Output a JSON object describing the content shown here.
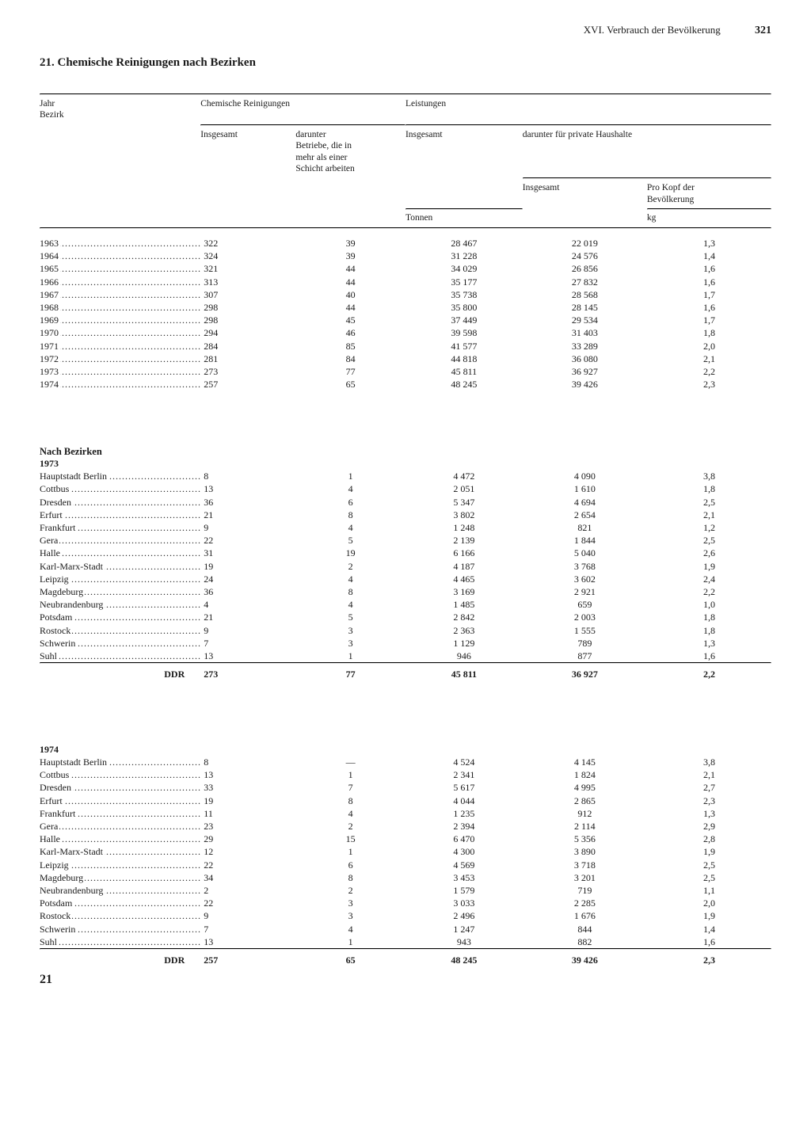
{
  "page": {
    "header_section": "XVI. Verbrauch der Bevölkerung",
    "page_number": "321",
    "title": "21. Chemische Reinigungen nach Bezirken",
    "footer_number": "21"
  },
  "table": {
    "head": {
      "label_line1": "Jahr",
      "label_line2": "Bezirk",
      "group_left": "Chemische Reinigungen",
      "group_right": "Leistungen",
      "col_a": "Insgesamt",
      "col_b_l1": "darunter",
      "col_b_l2": "Betriebe, die in",
      "col_b_l3": "mehr als einer",
      "col_b_l4": "Schicht arbeiten",
      "col_c": "Insgesamt",
      "group_de": "darunter für private Haushalte",
      "col_d": "Insgesamt",
      "col_e_l1": "Pro Kopf der",
      "col_e_l2": "Bevölkerung",
      "unit_c": "Tonnen",
      "unit_e": "kg"
    },
    "year_rows": [
      {
        "label": "1963",
        "a": "322",
        "b": "39",
        "c": "28 467",
        "d": "22 019",
        "e": "1,3"
      },
      {
        "label": "1964",
        "a": "324",
        "b": "39",
        "c": "31 228",
        "d": "24 576",
        "e": "1,4"
      },
      {
        "label": "1965",
        "a": "321",
        "b": "44",
        "c": "34 029",
        "d": "26 856",
        "e": "1,6"
      },
      {
        "label": "1966",
        "a": "313",
        "b": "44",
        "c": "35 177",
        "d": "27 832",
        "e": "1,6"
      },
      {
        "label": "1967",
        "a": "307",
        "b": "40",
        "c": "35 738",
        "d": "28 568",
        "e": "1,7"
      },
      {
        "label": "1968",
        "a": "298",
        "b": "44",
        "c": "35 800",
        "d": "28 145",
        "e": "1,6"
      },
      {
        "label": "1969",
        "a": "298",
        "b": "45",
        "c": "37 449",
        "d": "29 534",
        "e": "1,7"
      },
      {
        "label": "1970",
        "a": "294",
        "b": "46",
        "c": "39 598",
        "d": "31 403",
        "e": "1,8"
      },
      {
        "label": "1971",
        "a": "284",
        "b": "85",
        "c": "41 577",
        "d": "33 289",
        "e": "2,0"
      },
      {
        "label": "1972",
        "a": "281",
        "b": "84",
        "c": "44 818",
        "d": "36 080",
        "e": "2,1"
      },
      {
        "label": "1973",
        "a": "273",
        "b": "77",
        "c": "45 811",
        "d": "36 927",
        "e": "2,2"
      },
      {
        "label": "1974",
        "a": "257",
        "b": "65",
        "c": "48 245",
        "d": "39 426",
        "e": "2,3"
      }
    ],
    "section_heading": "Nach Bezirken",
    "y1973": {
      "year": "1973",
      "rows": [
        {
          "label": "Hauptstadt Berlin",
          "a": "8",
          "b": "1",
          "c": "4 472",
          "d": "4 090",
          "e": "3,8"
        },
        {
          "label": "Cottbus",
          "a": "13",
          "b": "4",
          "c": "2 051",
          "d": "1 610",
          "e": "1,8"
        },
        {
          "label": "Dresden",
          "a": "36",
          "b": "6",
          "c": "5 347",
          "d": "4 694",
          "e": "2,5"
        },
        {
          "label": "Erfurt",
          "a": "21",
          "b": "8",
          "c": "3 802",
          "d": "2 654",
          "e": "2,1"
        },
        {
          "label": "Frankfurt",
          "a": "9",
          "b": "4",
          "c": "1 248",
          "d": "821",
          "e": "1,2"
        },
        {
          "label": "Gera",
          "a": "22",
          "b": "5",
          "c": "2 139",
          "d": "1 844",
          "e": "2,5"
        },
        {
          "label": "Halle",
          "a": "31",
          "b": "19",
          "c": "6 166",
          "d": "5 040",
          "e": "2,6"
        },
        {
          "label": "Karl-Marx-Stadt",
          "a": "19",
          "b": "2",
          "c": "4 187",
          "d": "3 768",
          "e": "1,9"
        },
        {
          "label": "Leipzig",
          "a": "24",
          "b": "4",
          "c": "4 465",
          "d": "3 602",
          "e": "2,4"
        },
        {
          "label": "Magdeburg",
          "a": "36",
          "b": "8",
          "c": "3 169",
          "d": "2 921",
          "e": "2,2"
        },
        {
          "label": "Neubrandenburg",
          "a": "4",
          "b": "4",
          "c": "1 485",
          "d": "659",
          "e": "1,0"
        },
        {
          "label": "Potsdam",
          "a": "21",
          "b": "5",
          "c": "2 842",
          "d": "2 003",
          "e": "1,8"
        },
        {
          "label": "Rostock",
          "a": "9",
          "b": "3",
          "c": "2 363",
          "d": "1 555",
          "e": "1,8"
        },
        {
          "label": "Schwerin",
          "a": "7",
          "b": "3",
          "c": "1 129",
          "d": "789",
          "e": "1,3"
        },
        {
          "label": "Suhl",
          "a": "13",
          "b": "1",
          "c": "946",
          "d": "877",
          "e": "1,6"
        }
      ],
      "total": {
        "label": "DDR",
        "a": "273",
        "b": "77",
        "c": "45 811",
        "d": "36 927",
        "e": "2,2"
      }
    },
    "y1974": {
      "year": "1974",
      "rows": [
        {
          "label": "Hauptstadt Berlin",
          "a": "8",
          "b": "—",
          "c": "4 524",
          "d": "4 145",
          "e": "3,8"
        },
        {
          "label": "Cottbus",
          "a": "13",
          "b": "1",
          "c": "2 341",
          "d": "1 824",
          "e": "2,1"
        },
        {
          "label": "Dresden",
          "a": "33",
          "b": "7",
          "c": "5 617",
          "d": "4 995",
          "e": "2,7"
        },
        {
          "label": "Erfurt",
          "a": "19",
          "b": "8",
          "c": "4 044",
          "d": "2 865",
          "e": "2,3"
        },
        {
          "label": "Frankfurt",
          "a": "11",
          "b": "4",
          "c": "1 235",
          "d": "912",
          "e": "1,3"
        },
        {
          "label": "Gera",
          "a": "23",
          "b": "2",
          "c": "2 394",
          "d": "2 114",
          "e": "2,9"
        },
        {
          "label": "Halle",
          "a": "29",
          "b": "15",
          "c": "6 470",
          "d": "5 356",
          "e": "2,8"
        },
        {
          "label": "Karl-Marx-Stadt",
          "a": "12",
          "b": "1",
          "c": "4 300",
          "d": "3 890",
          "e": "1,9"
        },
        {
          "label": "Leipzig",
          "a": "22",
          "b": "6",
          "c": "4 569",
          "d": "3 718",
          "e": "2,5"
        },
        {
          "label": "Magdeburg",
          "a": "34",
          "b": "8",
          "c": "3 453",
          "d": "3 201",
          "e": "2,5"
        },
        {
          "label": "Neubrandenburg",
          "a": "2",
          "b": "2",
          "c": "1 579",
          "d": "719",
          "e": "1,1"
        },
        {
          "label": "Potsdam",
          "a": "22",
          "b": "3",
          "c": "3 033",
          "d": "2 285",
          "e": "2,0"
        },
        {
          "label": "Rostock",
          "a": "9",
          "b": "3",
          "c": "2 496",
          "d": "1 676",
          "e": "1,9"
        },
        {
          "label": "Schwerin",
          "a": "7",
          "b": "4",
          "c": "1 247",
          "d": "844",
          "e": "1,4"
        },
        {
          "label": "Suhl",
          "a": "13",
          "b": "1",
          "c": "943",
          "d": "882",
          "e": "1,6"
        }
      ],
      "total": {
        "label": "DDR",
        "a": "257",
        "b": "65",
        "c": "48 245",
        "d": "39 426",
        "e": "2,3"
      }
    }
  }
}
